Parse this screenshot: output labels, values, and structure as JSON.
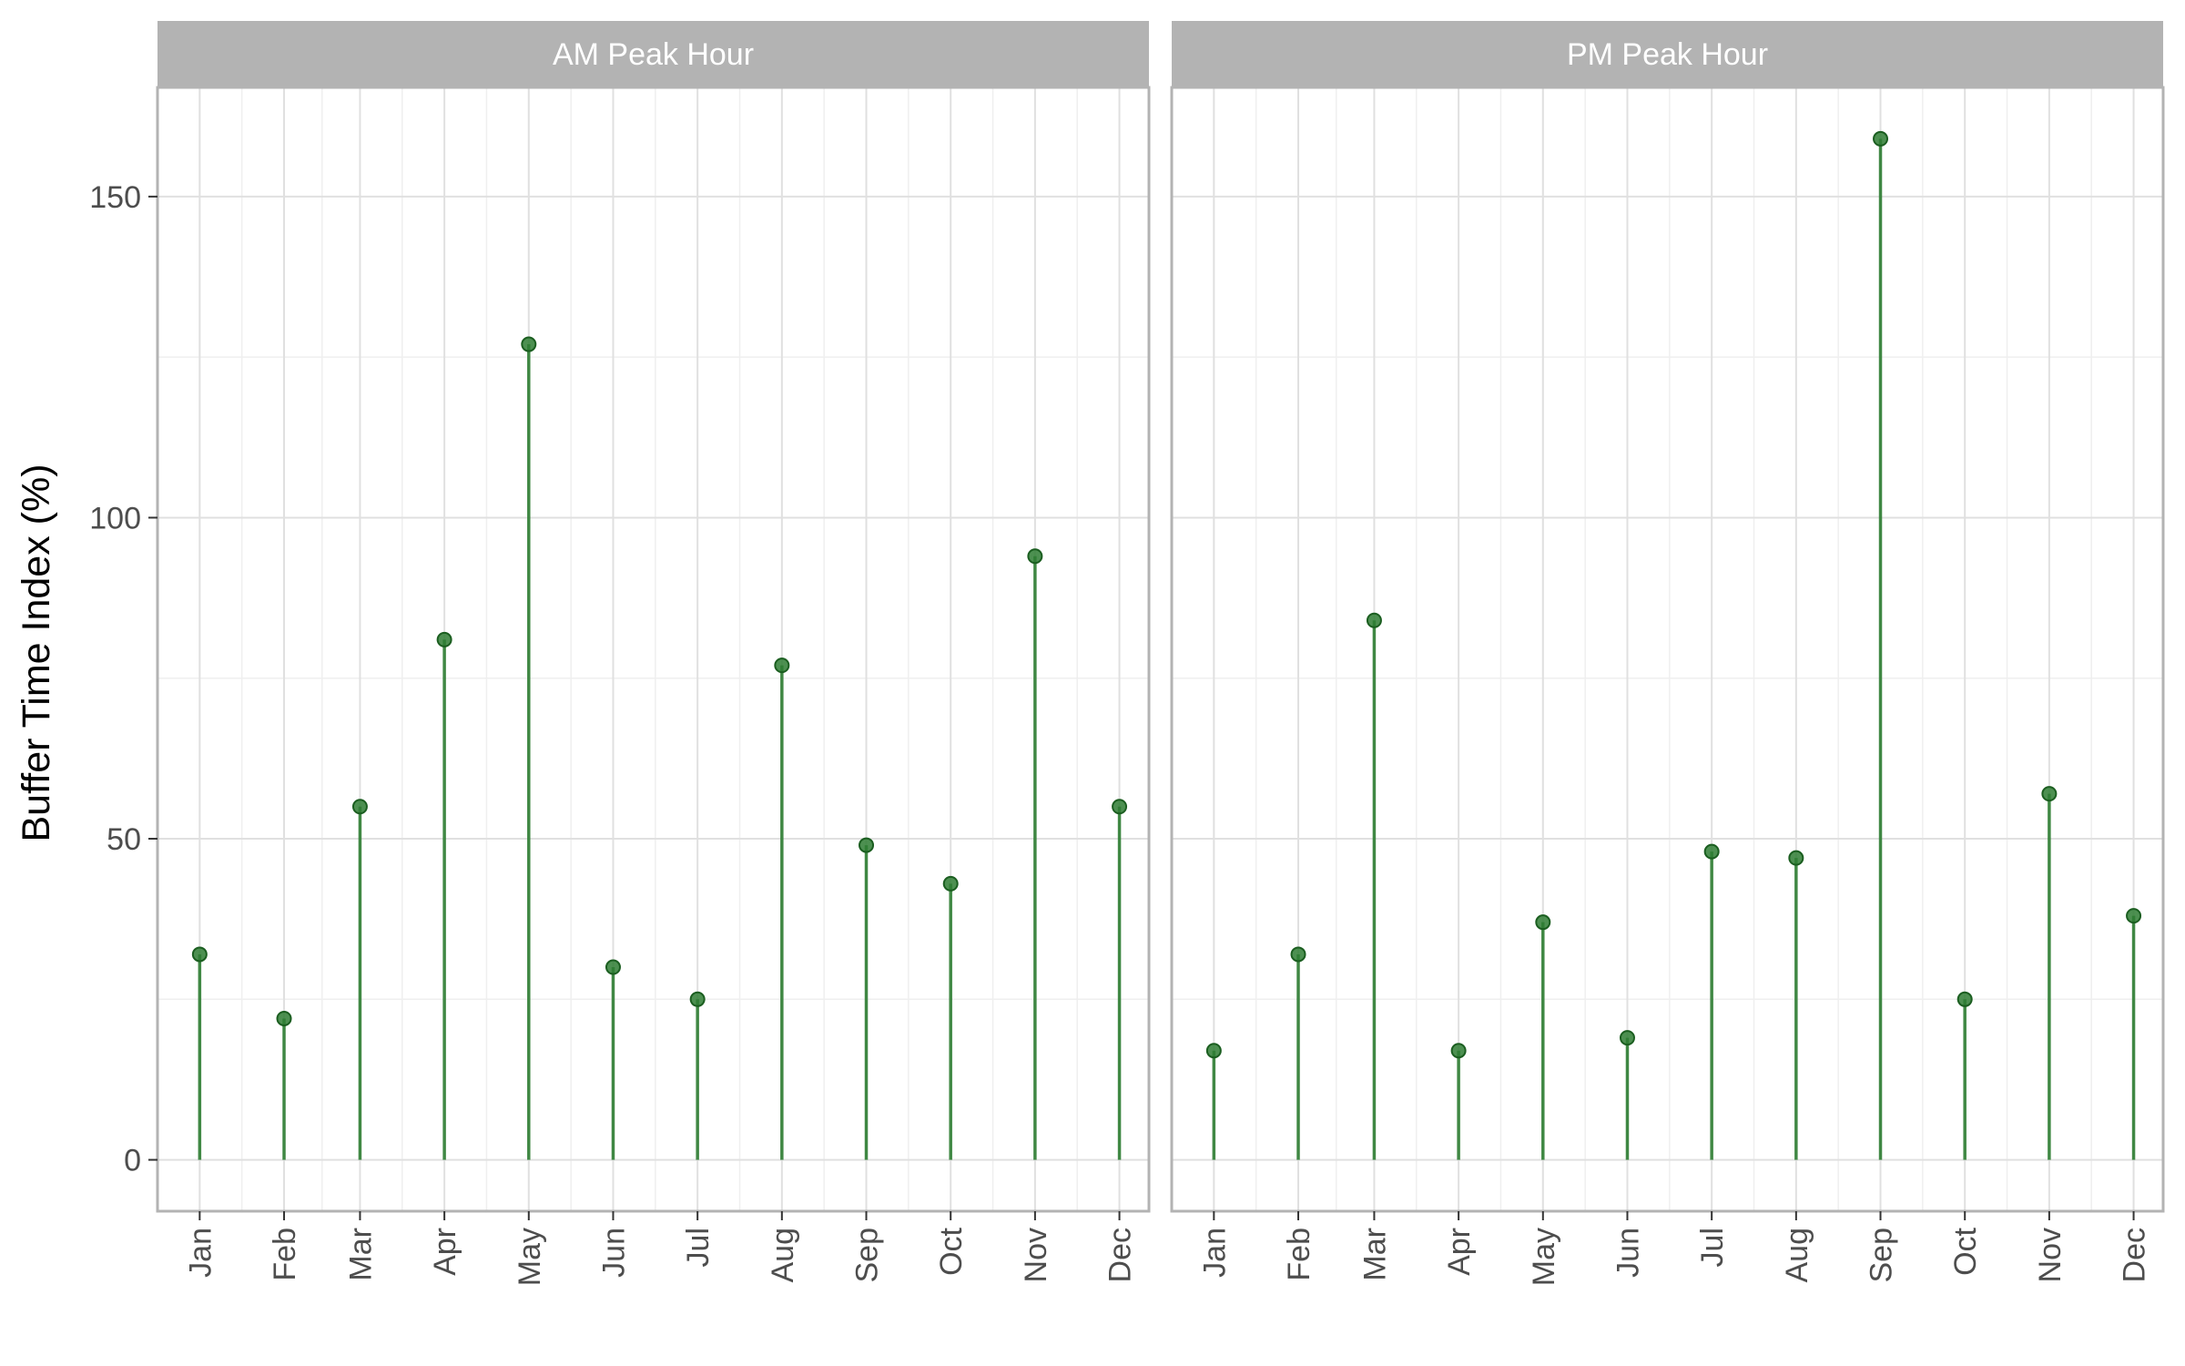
{
  "chart_data": {
    "type": "lollipop",
    "ylabel": "Buffer Time Index (%)",
    "ylim": [
      -8,
      167
    ],
    "yticks": [
      0,
      50,
      100,
      150
    ],
    "categories": [
      "Jan",
      "Feb",
      "Mar",
      "Apr",
      "May",
      "Jun",
      "Jul",
      "Aug",
      "Sep",
      "Oct",
      "Nov",
      "Dec"
    ],
    "grid": true,
    "colors": {
      "stem": "#2e7d32",
      "point": "#2e7d32",
      "strip": "#b3b3b3",
      "panel_border": "#b3b3b3",
      "grid": "#e0e0e0"
    },
    "panels": [
      {
        "title": "AM Peak Hour",
        "x_positions": [
          1,
          3,
          4.8,
          6.8,
          8.8,
          10.8,
          12.8,
          14.8,
          16.8,
          18.8,
          20.8,
          22.8
        ],
        "values": [
          32,
          22,
          55,
          81,
          127,
          30,
          25,
          77,
          49,
          43,
          94,
          55
        ]
      },
      {
        "title": "PM Peak Hour",
        "x_positions": [
          1,
          3,
          4.8,
          6.8,
          8.8,
          10.8,
          12.8,
          14.8,
          16.8,
          18.8,
          20.8,
          22.8
        ],
        "values": [
          17,
          32,
          84,
          17,
          37,
          19,
          48,
          47,
          159,
          25,
          57,
          38
        ]
      }
    ]
  }
}
